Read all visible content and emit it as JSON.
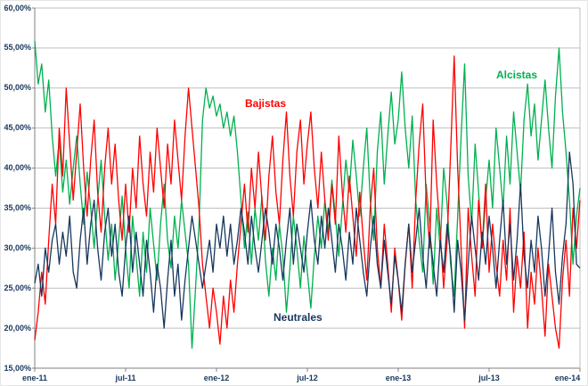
{
  "chart_data": {
    "type": "line",
    "title": "",
    "xlabel": "",
    "ylabel": "",
    "ylim": [
      15,
      60
    ],
    "grid": "horizontal",
    "legend_position": "inline-annotations",
    "y_ticks": [
      {
        "value": 60,
        "label": "60,00%"
      },
      {
        "value": 55,
        "label": "55,00%"
      },
      {
        "value": 50,
        "label": "50,00%"
      },
      {
        "value": 45,
        "label": "45,00%"
      },
      {
        "value": 40,
        "label": "40,00%"
      },
      {
        "value": 35,
        "label": "35,00%"
      },
      {
        "value": 30,
        "label": "30,00%"
      },
      {
        "value": 25,
        "label": "25,00%"
      },
      {
        "value": 20,
        "label": "20,00%"
      },
      {
        "value": 15,
        "label": "15,00%"
      }
    ],
    "x_ticks": [
      {
        "index": 0,
        "label": "ene-11"
      },
      {
        "index": 26,
        "label": "jul-11"
      },
      {
        "index": 52,
        "label": "ene-12"
      },
      {
        "index": 78,
        "label": "jul-12"
      },
      {
        "index": 104,
        "label": "ene-13"
      },
      {
        "index": 130,
        "label": "jul-13"
      },
      {
        "index": 156,
        "label": "ene-14"
      }
    ],
    "series": [
      {
        "id": "alcistas",
        "name": "Alcistas",
        "color": "#00B050",
        "values": [
          55.9,
          50.5,
          53.0,
          47.0,
          51.0,
          44.0,
          39.0,
          43.5,
          37.0,
          41.0,
          35.5,
          40.0,
          44.0,
          38.0,
          33.0,
          39.5,
          35.0,
          30.0,
          36.0,
          41.0,
          34.0,
          28.5,
          33.0,
          26.0,
          31.0,
          36.5,
          30.0,
          25.0,
          34.0,
          29.0,
          24.0,
          32.0,
          27.0,
          35.0,
          30.5,
          26.0,
          33.0,
          38.0,
          31.0,
          27.5,
          34.0,
          30.0,
          36.0,
          32.0,
          28.0,
          17.5,
          25.0,
          33.0,
          46.0,
          50.0,
          47.5,
          49.0,
          46.5,
          48.0,
          45.0,
          47.0,
          44.0,
          46.5,
          42.0,
          36.0,
          30.0,
          34.5,
          28.0,
          35.0,
          31.0,
          36.5,
          28.5,
          24.0,
          30.0,
          26.0,
          33.0,
          29.0,
          22.0,
          27.5,
          34.0,
          30.0,
          25.0,
          31.5,
          27.0,
          22.5,
          29.0,
          34.0,
          30.0,
          36.0,
          32.0,
          38.5,
          34.0,
          29.0,
          35.0,
          41.0,
          37.0,
          43.5,
          39.0,
          34.0,
          40.0,
          45.0,
          36.0,
          31.0,
          42.0,
          47.0,
          38.0,
          44.0,
          49.5,
          43.0,
          46.0,
          52.0,
          45.0,
          40.0,
          46.5,
          36.0,
          31.0,
          27.0,
          38.0,
          33.0,
          25.5,
          35.0,
          30.0,
          40.0,
          35.5,
          28.0,
          24.0,
          34.0,
          44.0,
          53.0,
          39.0,
          33.0,
          43.0,
          37.0,
          30.0,
          36.0,
          41.0,
          35.0,
          45.0,
          40.0,
          35.0,
          44.0,
          38.0,
          47.0,
          42.0,
          37.0,
          46.0,
          50.5,
          44.0,
          48.0,
          41.0,
          46.0,
          51.0,
          45.0,
          40.0,
          49.0,
          55.0,
          47.0,
          42.0,
          36.0,
          28.0,
          34.0,
          37.5
        ]
      },
      {
        "id": "bajistas",
        "name": "Bajistas",
        "color": "#FF0000",
        "values": [
          18.5,
          22.0,
          27.0,
          23.0,
          31.0,
          38.0,
          33.0,
          45.0,
          39.0,
          50.0,
          43.0,
          36.0,
          42.0,
          48.0,
          40.0,
          34.0,
          41.0,
          46.0,
          37.0,
          32.0,
          40.0,
          45.0,
          38.0,
          43.0,
          36.0,
          31.0,
          38.0,
          32.0,
          40.0,
          35.0,
          44.0,
          38.0,
          34.0,
          42.0,
          37.0,
          45.0,
          40.0,
          35.0,
          43.0,
          38.0,
          46.0,
          41.0,
          36.0,
          44.0,
          50.0,
          45.0,
          40.0,
          35.0,
          28.0,
          24.0,
          20.0,
          25.0,
          22.0,
          18.0,
          24.0,
          20.0,
          26.0,
          22.0,
          28.0,
          33.0,
          38.0,
          32.0,
          40.0,
          35.0,
          42.0,
          36.0,
          31.0,
          39.0,
          44.0,
          37.0,
          33.0,
          41.0,
          47.0,
          39.0,
          34.0,
          42.0,
          46.0,
          38.0,
          43.0,
          47.0,
          40.0,
          35.0,
          42.0,
          36.0,
          31.0,
          38.0,
          33.0,
          44.0,
          37.0,
          32.0,
          39.0,
          34.0,
          29.0,
          37.0,
          31.0,
          26.0,
          35.0,
          40.0,
          30.0,
          25.0,
          33.0,
          28.0,
          22.0,
          30.0,
          26.0,
          21.0,
          28.0,
          33.0,
          25.0,
          36.0,
          43.0,
          48.0,
          36.0,
          30.0,
          46.0,
          38.0,
          32.0,
          25.0,
          31.0,
          42.0,
          54.0,
          40.0,
          30.0,
          20.0,
          35.0,
          29.0,
          24.0,
          36.0,
          30.0,
          38.0,
          27.0,
          33.0,
          28.0,
          24.0,
          31.0,
          26.0,
          35.0,
          22.0,
          29.0,
          25.0,
          32.0,
          20.0,
          27.0,
          23.0,
          30.0,
          25.0,
          19.0,
          28.0,
          24.0,
          20.0,
          17.5,
          26.0,
          31.0,
          24.0,
          35.0,
          30.0,
          36.0
        ]
      },
      {
        "id": "neutrales",
        "name": "Neutrales",
        "color": "#17375E",
        "values": [
          25.6,
          28.0,
          24.0,
          30.0,
          27.0,
          31.0,
          33.0,
          28.0,
          32.0,
          29.0,
          34.0,
          27.0,
          25.0,
          31.0,
          35.0,
          28.0,
          33.0,
          36.0,
          30.0,
          26.0,
          32.0,
          35.0,
          29.0,
          33.0,
          27.0,
          24.0,
          30.0,
          34.0,
          27.0,
          32.0,
          28.0,
          24.0,
          31.0,
          27.0,
          22.0,
          28.0,
          25.0,
          20.0,
          26.0,
          31.0,
          24.0,
          28.0,
          21.0,
          26.0,
          30.0,
          34.0,
          31.0,
          28.0,
          25.0,
          28.0,
          31.0,
          27.0,
          33.0,
          30.0,
          34.0,
          29.0,
          33.0,
          28.0,
          31.0,
          35.0,
          32.0,
          28.0,
          34.0,
          30.0,
          27.0,
          31.0,
          35.0,
          32.0,
          28.0,
          33.0,
          30.0,
          26.0,
          31.0,
          35.0,
          28.0,
          33.0,
          30.0,
          27.0,
          32.0,
          36.0,
          31.0,
          28.0,
          34.0,
          30.0,
          35.0,
          31.0,
          27.0,
          33.0,
          30.0,
          26.0,
          32.0,
          28.0,
          35.0,
          31.0,
          27.0,
          24.0,
          30.0,
          34.0,
          28.0,
          25.0,
          31.0,
          27.0,
          23.0,
          29.0,
          26.0,
          22.0,
          28.0,
          33.0,
          27.0,
          31.0,
          35.0,
          29.0,
          25.0,
          32.0,
          28.0,
          24.0,
          31.0,
          27.0,
          33.0,
          29.0,
          22.0,
          31.0,
          27.0,
          21.0,
          28.0,
          34.0,
          30.0,
          26.0,
          32.0,
          28.0,
          34.0,
          30.0,
          25.0,
          31.0,
          36.0,
          28.0,
          33.0,
          26.0,
          31.0,
          38.0,
          29.0,
          25.0,
          31.0,
          27.0,
          34.0,
          30.0,
          24.0,
          29.0,
          35.0,
          27.0,
          23.0,
          29.0,
          33.0,
          42.0,
          38.0,
          28.0,
          27.5
        ]
      }
    ],
    "annotations": [
      {
        "text": "Alcistas",
        "color": "#00B050"
      },
      {
        "text": "Bajistas",
        "color": "#FF0000"
      },
      {
        "text": "Neutrales",
        "color": "#17375E"
      }
    ]
  }
}
